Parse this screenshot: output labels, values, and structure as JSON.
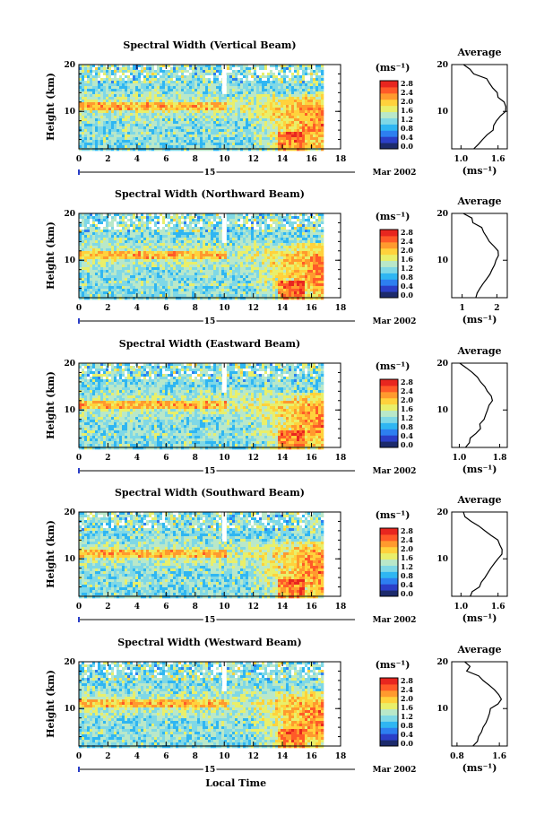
{
  "figure": {
    "xlabel": "Local Time",
    "date_label": "Mar 2002",
    "day_label": "15",
    "ylabel": "Height (km)",
    "cbar_unit": "(ms⁻¹)",
    "cbar_ticks": [
      "0.0",
      "0.4",
      "0.8",
      "1.2",
      "1.6",
      "2.0",
      "2.4",
      "2.8"
    ],
    "avg_title": "Average",
    "avg_unit": "(ms⁻¹)"
  },
  "chart_data": [
    {
      "type": "heatmap",
      "title": "Spectral Width (Vertical Beam)",
      "ylabel": "Height (km)",
      "x_ticks": [
        0,
        2,
        4,
        6,
        8,
        10,
        12,
        14,
        16,
        18
      ],
      "y_ticks": [
        10,
        20
      ],
      "xlim": [
        0,
        18
      ],
      "ylim": [
        2,
        20
      ],
      "data_extent_x": [
        0,
        16.8
      ],
      "value_range": [
        0.0,
        2.8
      ],
      "colorscale": [
        "#1c2a6c",
        "#2b3fc8",
        "#2d7ff0",
        "#2fb6f2",
        "#7fd8e6",
        "#b9e8c9",
        "#e9ef6a",
        "#ffd23c",
        "#ff9a2e",
        "#ff5a28",
        "#e8261f"
      ],
      "summary": "Widths mostly 1.0-1.6 ms-1; enhanced (>2.4) after 12 LT below ~10 km, peaking near 14-15 LT",
      "profile": {
        "title": "Average",
        "xlabel": "(ms⁻¹)",
        "x_ticks": [
          "1.0",
          "1.6"
        ],
        "xlim": [
          0.85,
          1.75
        ],
        "height": [
          20,
          19,
          18,
          17,
          16,
          15,
          14,
          13,
          12,
          11,
          10,
          9,
          8,
          7,
          6,
          5,
          4,
          3,
          2
        ],
        "value": [
          1.05,
          1.15,
          1.22,
          1.4,
          1.48,
          1.52,
          1.58,
          1.62,
          1.7,
          1.72,
          1.72,
          1.62,
          1.58,
          1.52,
          1.5,
          1.44,
          1.36,
          1.3,
          1.22
        ]
      }
    },
    {
      "type": "heatmap",
      "title": "Spectral Width (Northward Beam)",
      "ylabel": "Height (km)",
      "x_ticks": [
        0,
        2,
        4,
        6,
        8,
        10,
        12,
        14,
        16,
        18
      ],
      "y_ticks": [
        10,
        20
      ],
      "xlim": [
        0,
        18
      ],
      "ylim": [
        2,
        20
      ],
      "data_extent_x": [
        0,
        16.8
      ],
      "value_range": [
        0.0,
        2.8
      ],
      "colorscale": [
        "#1c2a6c",
        "#2b3fc8",
        "#2d7ff0",
        "#2fb6f2",
        "#7fd8e6",
        "#b9e8c9",
        "#e9ef6a",
        "#ffd23c",
        "#ff9a2e",
        "#ff5a28",
        "#e8261f"
      ],
      "summary": "Low widths above 16 km; moderate 1.6-2.0 between 6-16 km; strong enhancement after 12 LT",
      "profile": {
        "title": "Average",
        "xlabel": "(ms⁻¹)",
        "x_ticks": [
          "1",
          "2"
        ],
        "xlim": [
          0.7,
          2.3
        ],
        "height": [
          20,
          19,
          18,
          17,
          16,
          15,
          14,
          13,
          12,
          11,
          10,
          9,
          8,
          7,
          6,
          5,
          4,
          3,
          2
        ],
        "value": [
          1.05,
          1.3,
          1.3,
          1.55,
          1.6,
          1.72,
          1.8,
          1.9,
          2.02,
          2.05,
          1.98,
          1.92,
          1.85,
          1.8,
          1.72,
          1.6,
          1.5,
          1.45,
          1.38
        ]
      }
    },
    {
      "type": "heatmap",
      "title": "Spectral Width (Eastward Beam)",
      "ylabel": "Height (km)",
      "x_ticks": [
        0,
        2,
        4,
        6,
        8,
        10,
        12,
        14,
        16,
        18
      ],
      "y_ticks": [
        10,
        20
      ],
      "xlim": [
        0,
        18
      ],
      "ylim": [
        2,
        20
      ],
      "data_extent_x": [
        0,
        16.8
      ],
      "value_range": [
        0.0,
        2.8
      ],
      "colorscale": [
        "#1c2a6c",
        "#2b3fc8",
        "#2d7ff0",
        "#2fb6f2",
        "#7fd8e6",
        "#b9e8c9",
        "#e9ef6a",
        "#ffd23c",
        "#ff9a2e",
        "#ff5a28",
        "#e8261f"
      ],
      "summary": "Similar pattern; peak afternoon enhancement near 14 LT below 12 km",
      "profile": {
        "title": "Average",
        "xlabel": "(ms⁻¹)",
        "x_ticks": [
          "1.0",
          "1.8"
        ],
        "xlim": [
          0.85,
          1.95
        ],
        "height": [
          20,
          19,
          18,
          17,
          16,
          15,
          14,
          13,
          12,
          11,
          10,
          9,
          8,
          7,
          6,
          5,
          4,
          3,
          2
        ],
        "value": [
          1.0,
          1.12,
          1.25,
          1.35,
          1.42,
          1.5,
          1.55,
          1.62,
          1.65,
          1.6,
          1.55,
          1.52,
          1.5,
          1.42,
          1.4,
          1.32,
          1.22,
          1.18,
          1.12
        ]
      }
    },
    {
      "type": "heatmap",
      "title": "Spectral Width (Southward Beam)",
      "ylabel": "Height (km)",
      "x_ticks": [
        0,
        2,
        4,
        6,
        8,
        10,
        12,
        14,
        16,
        18
      ],
      "y_ticks": [
        10,
        20
      ],
      "xlim": [
        0,
        18
      ],
      "ylim": [
        2,
        20
      ],
      "data_extent_x": [
        0,
        16.8
      ],
      "value_range": [
        0.0,
        2.8
      ],
      "colorscale": [
        "#1c2a6c",
        "#2b3fc8",
        "#2d7ff0",
        "#2fb6f2",
        "#7fd8e6",
        "#b9e8c9",
        "#e9ef6a",
        "#ffd23c",
        "#ff9a2e",
        "#ff5a28",
        "#e8261f"
      ],
      "summary": "Widths increase strongly after 12 LT between 5-14 km",
      "profile": {
        "title": "Average",
        "xlabel": "(ms⁻¹)",
        "x_ticks": [
          "1.0",
          "1.6"
        ],
        "xlim": [
          0.85,
          1.75
        ],
        "height": [
          20,
          19,
          18,
          17,
          16,
          15,
          14,
          13,
          12,
          11,
          10,
          9,
          8,
          7,
          6,
          5,
          4,
          3,
          2
        ],
        "value": [
          1.05,
          1.08,
          1.18,
          1.3,
          1.4,
          1.5,
          1.58,
          1.62,
          1.68,
          1.65,
          1.58,
          1.55,
          1.5,
          1.45,
          1.4,
          1.32,
          1.28,
          1.2,
          1.15
        ]
      }
    },
    {
      "type": "heatmap",
      "title": "Spectral Width (Westward Beam)",
      "ylabel": "Height (km)",
      "x_ticks": [
        0,
        2,
        4,
        6,
        8,
        10,
        12,
        14,
        16,
        18
      ],
      "y_ticks": [
        10,
        20
      ],
      "xlim": [
        0,
        18
      ],
      "ylim": [
        2,
        20
      ],
      "data_extent_x": [
        0,
        16.8
      ],
      "value_range": [
        0.0,
        2.8
      ],
      "colorscale": [
        "#1c2a6c",
        "#2b3fc8",
        "#2d7ff0",
        "#2fb6f2",
        "#7fd8e6",
        "#b9e8c9",
        "#e9ef6a",
        "#ffd23c",
        "#ff9a2e",
        "#ff5a28",
        "#e8261f"
      ],
      "summary": "Afternoon enhancement near 14 LT below 10 km",
      "profile": {
        "title": "Average",
        "xlabel": "(ms⁻¹)",
        "x_ticks": [
          "0.8",
          "1.6"
        ],
        "xlim": [
          0.7,
          1.75
        ],
        "height": [
          20,
          19,
          18,
          17,
          16,
          15,
          14,
          13,
          12,
          11,
          10,
          9,
          8,
          7,
          6,
          5,
          4,
          3,
          2
        ],
        "value": [
          0.95,
          1.05,
          1.0,
          1.2,
          1.3,
          1.42,
          1.5,
          1.58,
          1.62,
          1.58,
          1.45,
          1.42,
          1.38,
          1.35,
          1.3,
          1.28,
          1.22,
          1.18,
          1.1
        ]
      }
    }
  ]
}
